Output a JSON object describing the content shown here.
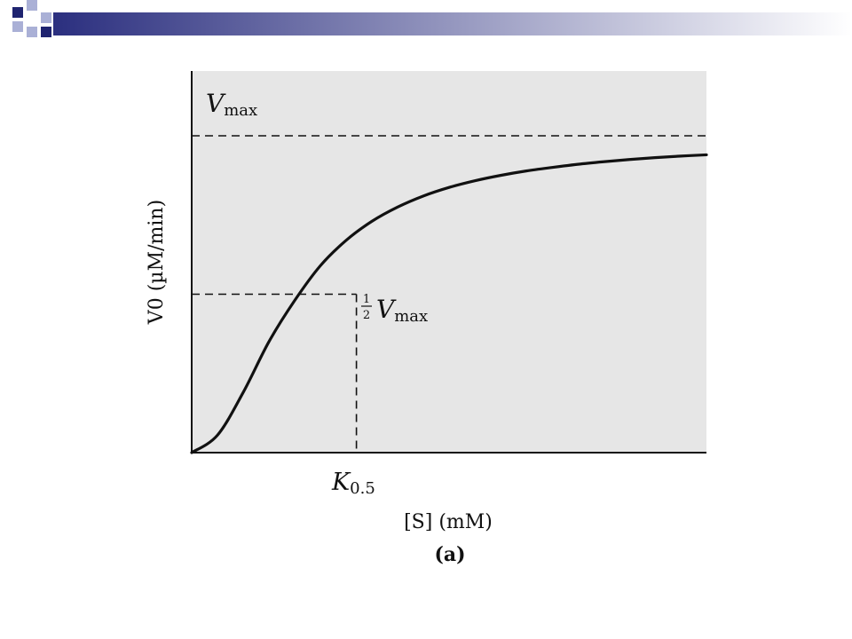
{
  "slide": {
    "colors": {
      "banner_start": "#2b2f7f",
      "banner_end": "#ffffff",
      "square_dark": "#1f2470",
      "square_light": "#aab0d6"
    }
  },
  "chart_data": {
    "type": "line",
    "title": "",
    "subtitle": "",
    "caption": "(a)",
    "xlabel": "[S] (mM)",
    "ylabel": "V0 (µM/min)",
    "xlim": [
      0,
      10
    ],
    "ylim": [
      0,
      10
    ],
    "grid": false,
    "background": "#e6e6e6",
    "line_color": "#111111",
    "series": [
      {
        "x": [
          0,
          0.5,
          1,
          1.5,
          2,
          2.5,
          3,
          3.5,
          4,
          4.5,
          5,
          5.5,
          6,
          6.5,
          7,
          7.5,
          8,
          8.5,
          9,
          9.5,
          10
        ],
        "values": [
          0,
          0.55,
          1.9,
          3.5,
          4.8,
          5.9,
          6.7,
          7.3,
          7.75,
          8.1,
          8.37,
          8.58,
          8.75,
          8.89,
          9.0,
          9.1,
          9.18,
          9.25,
          9.31,
          9.36,
          9.4
        ]
      }
    ],
    "reference_lines": {
      "vmax": {
        "y": 10,
        "label_main": "V",
        "label_sub": "max"
      },
      "half_vmax": {
        "y": 5,
        "label_frac_num": "1",
        "label_frac_den": "2",
        "label_main": "V",
        "label_sub": "max"
      },
      "k05": {
        "x": 3.2,
        "label_main": "K",
        "label_sub": "0.5"
      }
    }
  }
}
